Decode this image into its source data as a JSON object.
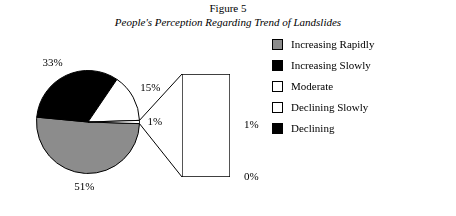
{
  "chart_data": {
    "type": "pie_of_pie",
    "title": "Figure 5",
    "subtitle": "People's Perception Regarding Trend of Landslides",
    "categories": [
      "Increasing Rapidly",
      "Increasing Slowly",
      "Moderate",
      "Declining Slowly",
      "Declining"
    ],
    "values": [
      51,
      33,
      15,
      1,
      0
    ],
    "value_labels": [
      "51%",
      "33%",
      "15%",
      "1%",
      "0%"
    ],
    "colors": [
      "#8c8c8c",
      "#000000",
      "#ffffff",
      "#ffffff",
      "#000000"
    ],
    "data_labels": true,
    "legend": "right"
  }
}
